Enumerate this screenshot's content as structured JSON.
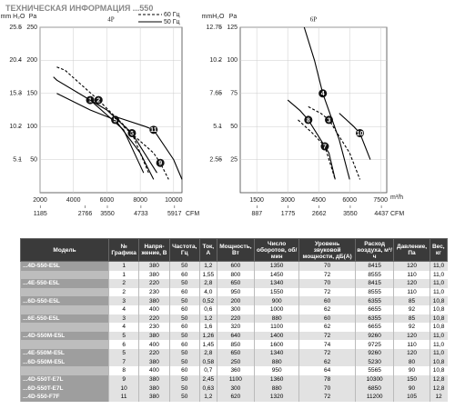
{
  "header": {
    "title": "ТЕХНИЧЕСКАЯ ИНФОРМАЦИЯ ...550"
  },
  "chart_data": [
    {
      "type": "line",
      "title": "4P",
      "y_label": "Pa",
      "y2_label": "mm H₂O",
      "x2_label": "CFM",
      "xlim": [
        2000,
        10500
      ],
      "xticks": [
        2000,
        4000,
        6000,
        8000,
        10000
      ],
      "x2lim": [
        1177,
        6180
      ],
      "x2ticks": [
        1185,
        2766,
        3550,
        4733,
        5917
      ],
      "ylim": [
        0,
        250
      ],
      "yticks": [
        50,
        100,
        150,
        200,
        250
      ],
      "y2lim": [
        0,
        25.5
      ],
      "y2ticks": [
        5.1,
        10.2,
        15.3,
        20.4,
        25.5
      ],
      "grid": true,
      "legend": [
        {
          "label": "60 Гц",
          "style": "dashed"
        },
        {
          "label": "50 Гц",
          "style": "solid"
        }
      ],
      "series": [
        {
          "name": "2",
          "color": "#000000",
          "style": "dashed",
          "x": [
            3000,
            3500,
            5500,
            7500,
            8500
          ],
          "values": [
            190,
            185,
            140,
            90,
            30
          ]
        },
        {
          "name": "1",
          "color": "#000000",
          "style": "solid",
          "x": [
            2800,
            3000,
            5000,
            7000,
            8200
          ],
          "values": [
            175,
            170,
            140,
            95,
            30
          ]
        },
        {
          "name": "5",
          "color": "#000000",
          "style": "solid",
          "x": [
            3000,
            3400,
            5000,
            6500,
            8000,
            8800
          ],
          "values": [
            150,
            145,
            125,
            110,
            60,
            20
          ]
        },
        {
          "name": "6",
          "color": "#000000",
          "style": "solid",
          "x": [
            5000,
            6000,
            7500,
            9000
          ],
          "values": [
            140,
            125,
            90,
            30
          ]
        },
        {
          "name": "11",
          "color": "#000000",
          "style": "solid",
          "x": [
            6500,
            8300,
            8800,
            10000,
            10500
          ],
          "values": [
            115,
            100,
            95,
            50,
            20
          ]
        },
        {
          "name": "9",
          "color": "#000000",
          "style": "dashed",
          "x": [
            7000,
            8800,
            9200,
            9700
          ],
          "values": [
            100,
            60,
            45,
            20
          ]
        }
      ]
    },
    {
      "type": "line",
      "title": "6P",
      "y_label": "Pa",
      "y2_label": "mmH₂O",
      "x_label": "m³/h",
      "x2_label": "CFM",
      "xlim": [
        700,
        7800
      ],
      "xticks": [
        1500,
        3000,
        4500,
        6000,
        7500
      ],
      "x2lim": [
        412,
        4590
      ],
      "x2ticks": [
        887,
        1775,
        2662,
        3550,
        4437
      ],
      "ylim": [
        0,
        125
      ],
      "yticks": [
        25,
        50,
        75,
        100,
        125
      ],
      "y2lim": [
        0,
        12.75
      ],
      "y2ticks": [
        2.55,
        5.1,
        7.65,
        10.2,
        12.75
      ],
      "grid": true,
      "series": [
        {
          "name": "4",
          "color": "#000000",
          "style": "solid",
          "x": [
            3800,
            4300,
            4700,
            5500,
            6000
          ],
          "values": [
            125,
            100,
            75,
            40,
            10
          ]
        },
        {
          "name": "8",
          "color": "#000000",
          "style": "solid",
          "x": [
            3000,
            3600,
            4000,
            5000,
            5300
          ],
          "values": [
            70,
            62,
            55,
            30,
            10
          ]
        },
        {
          "name": "3",
          "color": "#000000",
          "style": "dashed",
          "x": [
            4000,
            4600,
            5000,
            6000,
            6500
          ],
          "values": [
            65,
            60,
            55,
            30,
            10
          ]
        },
        {
          "name": "10",
          "color": "#000000",
          "style": "solid",
          "x": [
            5500,
            6200,
            6500,
            7000
          ],
          "values": [
            60,
            50,
            45,
            25
          ]
        },
        {
          "name": "7",
          "color": "#000000",
          "style": "dashed",
          "x": [
            3500,
            4200,
            4800,
            5300
          ],
          "values": [
            55,
            45,
            35,
            10
          ]
        }
      ]
    }
  ],
  "table": {
    "columns": [
      "Модель",
      "№ Графика",
      "Напря-жение, В",
      "Частота, Гц",
      "Ток, А",
      "Мощность, Вт",
      "Число оборотов, об/мин",
      "Уровень звуковой мощности, дБ(А)",
      "Расход воздуха, м³/ч",
      "Давление, Па",
      "Вес, кг"
    ],
    "rows": [
      [
        "...4D-550-E5L",
        "1",
        "380",
        "50",
        "1,2",
        "600",
        "1350",
        "70",
        "8415",
        "120",
        "11,0"
      ],
      [
        null,
        "1",
        "380",
        "60",
        "1,55",
        "800",
        "1450",
        "72",
        "8555",
        "110",
        "11,0"
      ],
      [
        "...4E-550-E5L",
        "2",
        "220",
        "50",
        "2,8",
        "650",
        "1340",
        "70",
        "8415",
        "120",
        "11,0"
      ],
      [
        null,
        "2",
        "230",
        "60",
        "4,0",
        "950",
        "1550",
        "72",
        "8555",
        "110",
        "11,0"
      ],
      [
        "...6D-550-E5L",
        "3",
        "380",
        "50",
        "0,52",
        "200",
        "900",
        "60",
        "6355",
        "85",
        "10,8"
      ],
      [
        null,
        "4",
        "400",
        "60",
        "0,6",
        "300",
        "1000",
        "62",
        "6655",
        "92",
        "10,8"
      ],
      [
        "...6E-550-E5L",
        "3",
        "220",
        "50",
        "1,2",
        "220",
        "880",
        "60",
        "6355",
        "85",
        "10,8"
      ],
      [
        null,
        "4",
        "230",
        "60",
        "1,6",
        "320",
        "1100",
        "62",
        "6655",
        "92",
        "10,8"
      ],
      [
        "...4D-550M-E5L",
        "5",
        "380",
        "50",
        "1,26",
        "640",
        "1400",
        "72",
        "9260",
        "120",
        "11,0"
      ],
      [
        null,
        "6",
        "400",
        "60",
        "1,45",
        "850",
        "1600",
        "74",
        "9725",
        "110",
        "11,0"
      ],
      [
        "...4E-550M-E5L",
        "5",
        "220",
        "50",
        "2,8",
        "650",
        "1340",
        "72",
        "9260",
        "120",
        "11,0"
      ],
      [
        "...6D-550M-E5L",
        "7",
        "380",
        "50",
        "0,58",
        "250",
        "880",
        "62",
        "5230",
        "80",
        "10,8"
      ],
      [
        null,
        "8",
        "400",
        "60",
        "0,7",
        "360",
        "950",
        "64",
        "5565",
        "90",
        "10,8"
      ],
      [
        "...4D-550T-E7L",
        "9",
        "380",
        "50",
        "2,45",
        "1100",
        "1360",
        "78",
        "10300",
        "150",
        "12,8"
      ],
      [
        "...6D-550T-E7L",
        "10",
        "380",
        "50",
        "0,63",
        "300",
        "880",
        "70",
        "6850",
        "90",
        "12,8"
      ],
      [
        "...4D-550-F7F",
        "11",
        "380",
        "50",
        "1,2",
        "620",
        "1320",
        "72",
        "11200",
        "105",
        "12"
      ]
    ]
  }
}
